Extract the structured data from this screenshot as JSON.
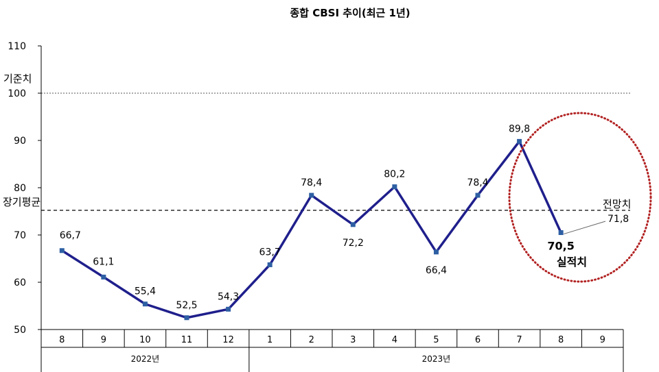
{
  "chart_data": {
    "type": "line",
    "title": "종합 CBSI 추이(최근 1년)",
    "ylim": [
      50,
      110
    ],
    "yticks": [
      "50",
      "60",
      "70",
      "80",
      "90",
      "100",
      "110"
    ],
    "categories": [
      "8",
      "9",
      "10",
      "11",
      "12",
      "1",
      "2",
      "3",
      "4",
      "5",
      "6",
      "7",
      "8",
      "9"
    ],
    "years": [
      {
        "label": "2022년",
        "start": 0,
        "end": 4
      },
      {
        "label": "2023년",
        "start": 5,
        "end": 13
      }
    ],
    "series": [
      {
        "values": [
          66.7,
          61.1,
          55.4,
          52.5,
          54.3,
          63.7,
          78.4,
          72.2,
          80.2,
          66.4,
          78.4,
          89.8,
          70.5,
          null
        ],
        "labels": [
          "66,7",
          "61,1",
          "55,4",
          "52,5",
          "54,3",
          "63,7",
          "78,4",
          "72,2",
          "80,2",
          "66,4",
          "78,4",
          "89,8",
          "70,5",
          ""
        ],
        "color": "#1f1f8c"
      }
    ],
    "reference_lines": [
      {
        "label": "기준치",
        "value": 100,
        "style": "dotted"
      },
      {
        "label": "장기평균",
        "value": 75,
        "style": "dashed"
      }
    ],
    "forecast": {
      "label": "전망치",
      "value_label": "71,8",
      "value": 71.8
    },
    "actual_label": "실적치",
    "highlight_color": "#b22222"
  }
}
